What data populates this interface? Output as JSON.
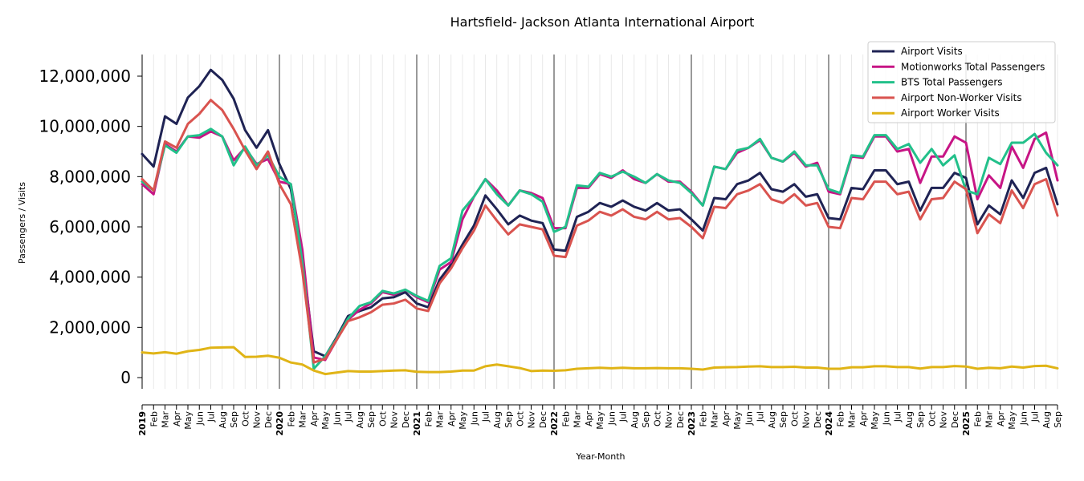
{
  "chart_data": {
    "type": "line",
    "title": "Hartsfield- Jackson Atlanta International Airport",
    "xlabel": "Year-Month",
    "ylabel": "Passengers / Visits",
    "ylim": [
      -500000,
      12800000
    ],
    "yticks": [
      0,
      2000000,
      4000000,
      6000000,
      8000000,
      10000000,
      12000000
    ],
    "ytick_labels": [
      "0",
      "2,000,000",
      "4,000,000",
      "6,000,000",
      "8,000,000",
      "10,000,000",
      "12,000,000"
    ],
    "legend_position": "top-right",
    "x_labels": [
      "2019",
      "Feb",
      "Mar",
      "Apr",
      "May",
      "Jun",
      "Jul",
      "Aug",
      "Sep",
      "Oct",
      "Nov",
      "Dec",
      "2020",
      "Feb",
      "Mar",
      "Apr",
      "May",
      "Jun",
      "Jul",
      "Aug",
      "Sep",
      "Oct",
      "Nov",
      "Dec",
      "2021",
      "Feb",
      "Mar",
      "Apr",
      "May",
      "Jun",
      "Jul",
      "Aug",
      "Sep",
      "Oct",
      "Nov",
      "Dec",
      "2022",
      "Feb",
      "Mar",
      "Apr",
      "May",
      "Jun",
      "Jul",
      "Aug",
      "Sep",
      "Oct",
      "Nov",
      "Dec",
      "2023",
      "Feb",
      "Mar",
      "Apr",
      "May",
      "Jun",
      "Jul",
      "Aug",
      "Sep",
      "Oct",
      "Nov",
      "Dec",
      "2024",
      "Feb",
      "Mar",
      "Apr",
      "May",
      "Jun",
      "Jul",
      "Aug",
      "Sep",
      "Oct",
      "Nov",
      "Dec",
      "2025",
      "Feb",
      "Mar",
      "Apr",
      "May",
      "Jun",
      "Jul",
      "Aug",
      "Sep"
    ],
    "year_indices": [
      0,
      12,
      24,
      36,
      48,
      60,
      72
    ],
    "series": [
      {
        "name": "Airport Visits",
        "color": "#1f2354",
        "values": [
          8900000,
          8400000,
          10400000,
          10100000,
          11150000,
          11600000,
          12250000,
          11850000,
          11100000,
          9850000,
          9150000,
          9850000,
          8500000,
          7500000,
          4800000,
          1050000,
          850000,
          1600000,
          2450000,
          2650000,
          2800000,
          3150000,
          3200000,
          3400000,
          2950000,
          2800000,
          3900000,
          4500000,
          5300000,
          6050000,
          7250000,
          6700000,
          6100000,
          6450000,
          6250000,
          6150000,
          5100000,
          5050000,
          6400000,
          6600000,
          6950000,
          6800000,
          7050000,
          6800000,
          6650000,
          6950000,
          6650000,
          6700000,
          6300000,
          5850000,
          7150000,
          7100000,
          7700000,
          7850000,
          8150000,
          7500000,
          7400000,
          7700000,
          7200000,
          7300000,
          6350000,
          6300000,
          7550000,
          7500000,
          8250000,
          8250000,
          7700000,
          7800000,
          6650000,
          7550000,
          7550000,
          8150000,
          7950000,
          6100000,
          6850000,
          6500000,
          7850000,
          7150000,
          8150000,
          8350000,
          6900000
        ]
      },
      {
        "name": "Motionworks Total Passengers",
        "color": "#c71585",
        "values": [
          7700000,
          7300000,
          9300000,
          9000000,
          9600000,
          9550000,
          9800000,
          9600000,
          8650000,
          9150000,
          8500000,
          8700000,
          7800000,
          7700000,
          5100000,
          800000,
          700000,
          1500000,
          2300000,
          2700000,
          2950000,
          3400000,
          3300000,
          3500000,
          3200000,
          3000000,
          4300000,
          4600000,
          6300000,
          7200000,
          7900000,
          7450000,
          6850000,
          7450000,
          7350000,
          7150000,
          5950000,
          5950000,
          7550000,
          7550000,
          8100000,
          7950000,
          8250000,
          7900000,
          7750000,
          8100000,
          7800000,
          7800000,
          7400000,
          6850000,
          8400000,
          8300000,
          8950000,
          9150000,
          9450000,
          8750000,
          8600000,
          8950000,
          8400000,
          8550000,
          7400000,
          7300000,
          8800000,
          8750000,
          9600000,
          9600000,
          9000000,
          9100000,
          7750000,
          8800000,
          8800000,
          9600000,
          9350000,
          7100000,
          8050000,
          7550000,
          9200000,
          8350000,
          9500000,
          9750000,
          7850000
        ]
      },
      {
        "name": "BTS Total Passengers",
        "color": "#22c08a",
        "values": [
          7800000,
          7450000,
          9250000,
          8950000,
          9600000,
          9650000,
          9900000,
          9600000,
          8450000,
          9200000,
          8450000,
          8850000,
          8000000,
          7700000,
          4600000,
          350000,
          850000,
          1550000,
          2350000,
          2850000,
          3000000,
          3450000,
          3350000,
          3500000,
          3250000,
          3050000,
          4450000,
          4750000,
          6650000,
          7200000,
          7900000,
          7300000,
          6850000,
          7450000,
          7300000,
          7000000,
          5800000,
          6000000,
          7650000,
          7600000,
          8150000,
          8000000,
          8200000,
          8000000,
          7750000,
          8100000,
          7850000,
          7750000,
          7350000,
          6850000,
          8400000,
          8300000,
          9050000,
          9150000,
          9500000,
          8750000,
          8600000,
          9000000,
          8450000,
          8450000,
          7500000,
          7350000,
          8850000,
          8800000,
          9650000,
          9650000,
          9100000,
          9300000,
          8550000,
          9100000,
          8450000,
          8850000,
          7450000,
          7300000,
          8750000,
          8500000,
          9350000,
          9350000,
          9700000,
          8950000,
          8450000
        ]
      },
      {
        "name": "Airport Non-Worker Visits",
        "color": "#d9534f",
        "values": [
          7900000,
          7450000,
          9400000,
          9150000,
          10100000,
          10500000,
          11050000,
          10650000,
          9900000,
          9050000,
          8300000,
          9000000,
          7700000,
          6900000,
          4250000,
          600000,
          750000,
          1500000,
          2250000,
          2400000,
          2600000,
          2900000,
          2950000,
          3100000,
          2750000,
          2650000,
          3750000,
          4350000,
          5150000,
          5850000,
          6850000,
          6250000,
          5700000,
          6100000,
          6000000,
          5900000,
          4850000,
          4800000,
          6050000,
          6250000,
          6600000,
          6450000,
          6700000,
          6400000,
          6300000,
          6600000,
          6300000,
          6350000,
          6000000,
          5550000,
          6800000,
          6750000,
          7300000,
          7450000,
          7700000,
          7100000,
          6950000,
          7300000,
          6850000,
          6950000,
          6000000,
          5950000,
          7150000,
          7100000,
          7800000,
          7800000,
          7300000,
          7400000,
          6300000,
          7100000,
          7150000,
          7800000,
          7500000,
          5750000,
          6500000,
          6150000,
          7450000,
          6750000,
          7700000,
          7900000,
          6450000
        ]
      },
      {
        "name": "Airport Worker Visits",
        "color": "#e0b416",
        "values": [
          1000000,
          960000,
          1010000,
          950000,
          1050000,
          1100000,
          1190000,
          1200000,
          1210000,
          820000,
          830000,
          870000,
          790000,
          600000,
          520000,
          280000,
          140000,
          200000,
          260000,
          240000,
          240000,
          260000,
          280000,
          290000,
          230000,
          220000,
          220000,
          240000,
          280000,
          280000,
          450000,
          520000,
          450000,
          380000,
          260000,
          280000,
          270000,
          290000,
          350000,
          370000,
          390000,
          370000,
          390000,
          370000,
          370000,
          380000,
          370000,
          370000,
          350000,
          320000,
          400000,
          410000,
          420000,
          440000,
          450000,
          420000,
          420000,
          430000,
          400000,
          400000,
          350000,
          350000,
          410000,
          410000,
          450000,
          450000,
          420000,
          420000,
          360000,
          420000,
          420000,
          460000,
          440000,
          350000,
          390000,
          370000,
          440000,
          400000,
          460000,
          470000,
          370000
        ]
      }
    ]
  }
}
